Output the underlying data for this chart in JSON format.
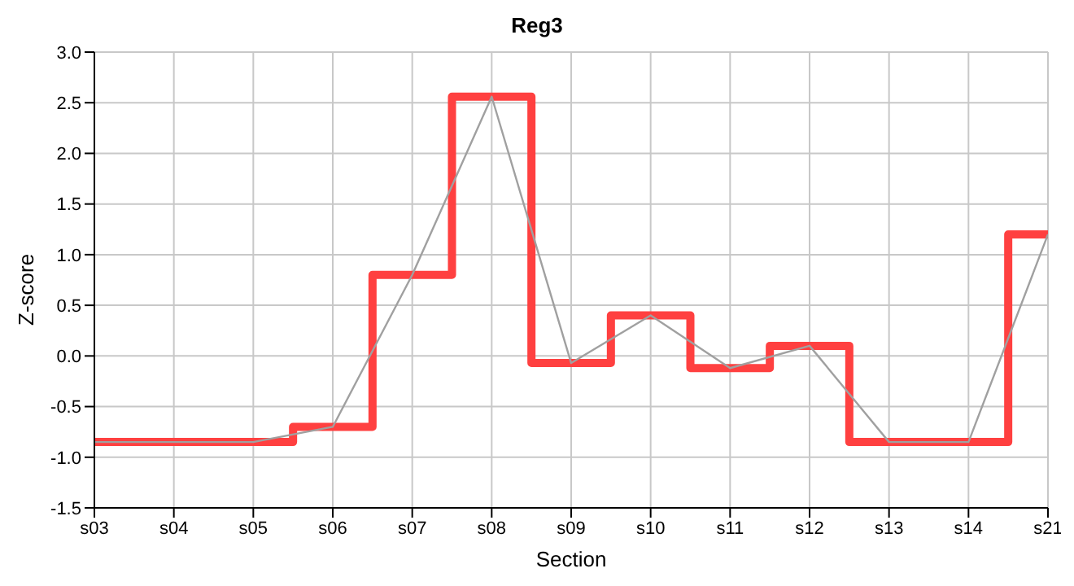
{
  "chart_data": {
    "type": "line",
    "title": "Reg3",
    "xlabel": "Section",
    "ylabel": "Z-score",
    "categories": [
      "s03",
      "s04",
      "s05",
      "s06",
      "s07",
      "s08",
      "s09",
      "s10",
      "s11",
      "s12",
      "s13",
      "s14",
      "s21"
    ],
    "series": [
      {
        "type": "step",
        "color": "#ff4040",
        "values": [
          -0.85,
          -0.85,
          -0.85,
          -0.7,
          0.8,
          2.56,
          -0.07,
          0.4,
          -0.12,
          0.1,
          -0.85,
          -0.85,
          1.2
        ]
      },
      {
        "type": "line",
        "color": "#a0a0a0",
        "values": [
          -0.85,
          -0.85,
          -0.85,
          -0.7,
          0.8,
          2.56,
          -0.07,
          0.4,
          -0.12,
          0.1,
          -0.85,
          -0.85,
          1.2
        ]
      }
    ],
    "ylim": [
      -1.5,
      3.0
    ],
    "yticks": [
      {
        "value": -1.5,
        "label": "-1.5"
      },
      {
        "value": -1,
        "label": "-1.0"
      },
      {
        "value": -0.5,
        "label": "-0.5"
      },
      {
        "value": 0,
        "label": "0.0"
      },
      {
        "value": 0.5,
        "label": "0.5"
      },
      {
        "value": 1,
        "label": "1.0"
      },
      {
        "value": 1.5,
        "label": "1.5"
      },
      {
        "value": 2,
        "label": "2.0"
      },
      {
        "value": 2.5,
        "label": "2.5"
      },
      {
        "value": 3,
        "label": "3.0"
      }
    ],
    "grid": true,
    "legend": false,
    "marker": "none",
    "line_style": "solid"
  }
}
